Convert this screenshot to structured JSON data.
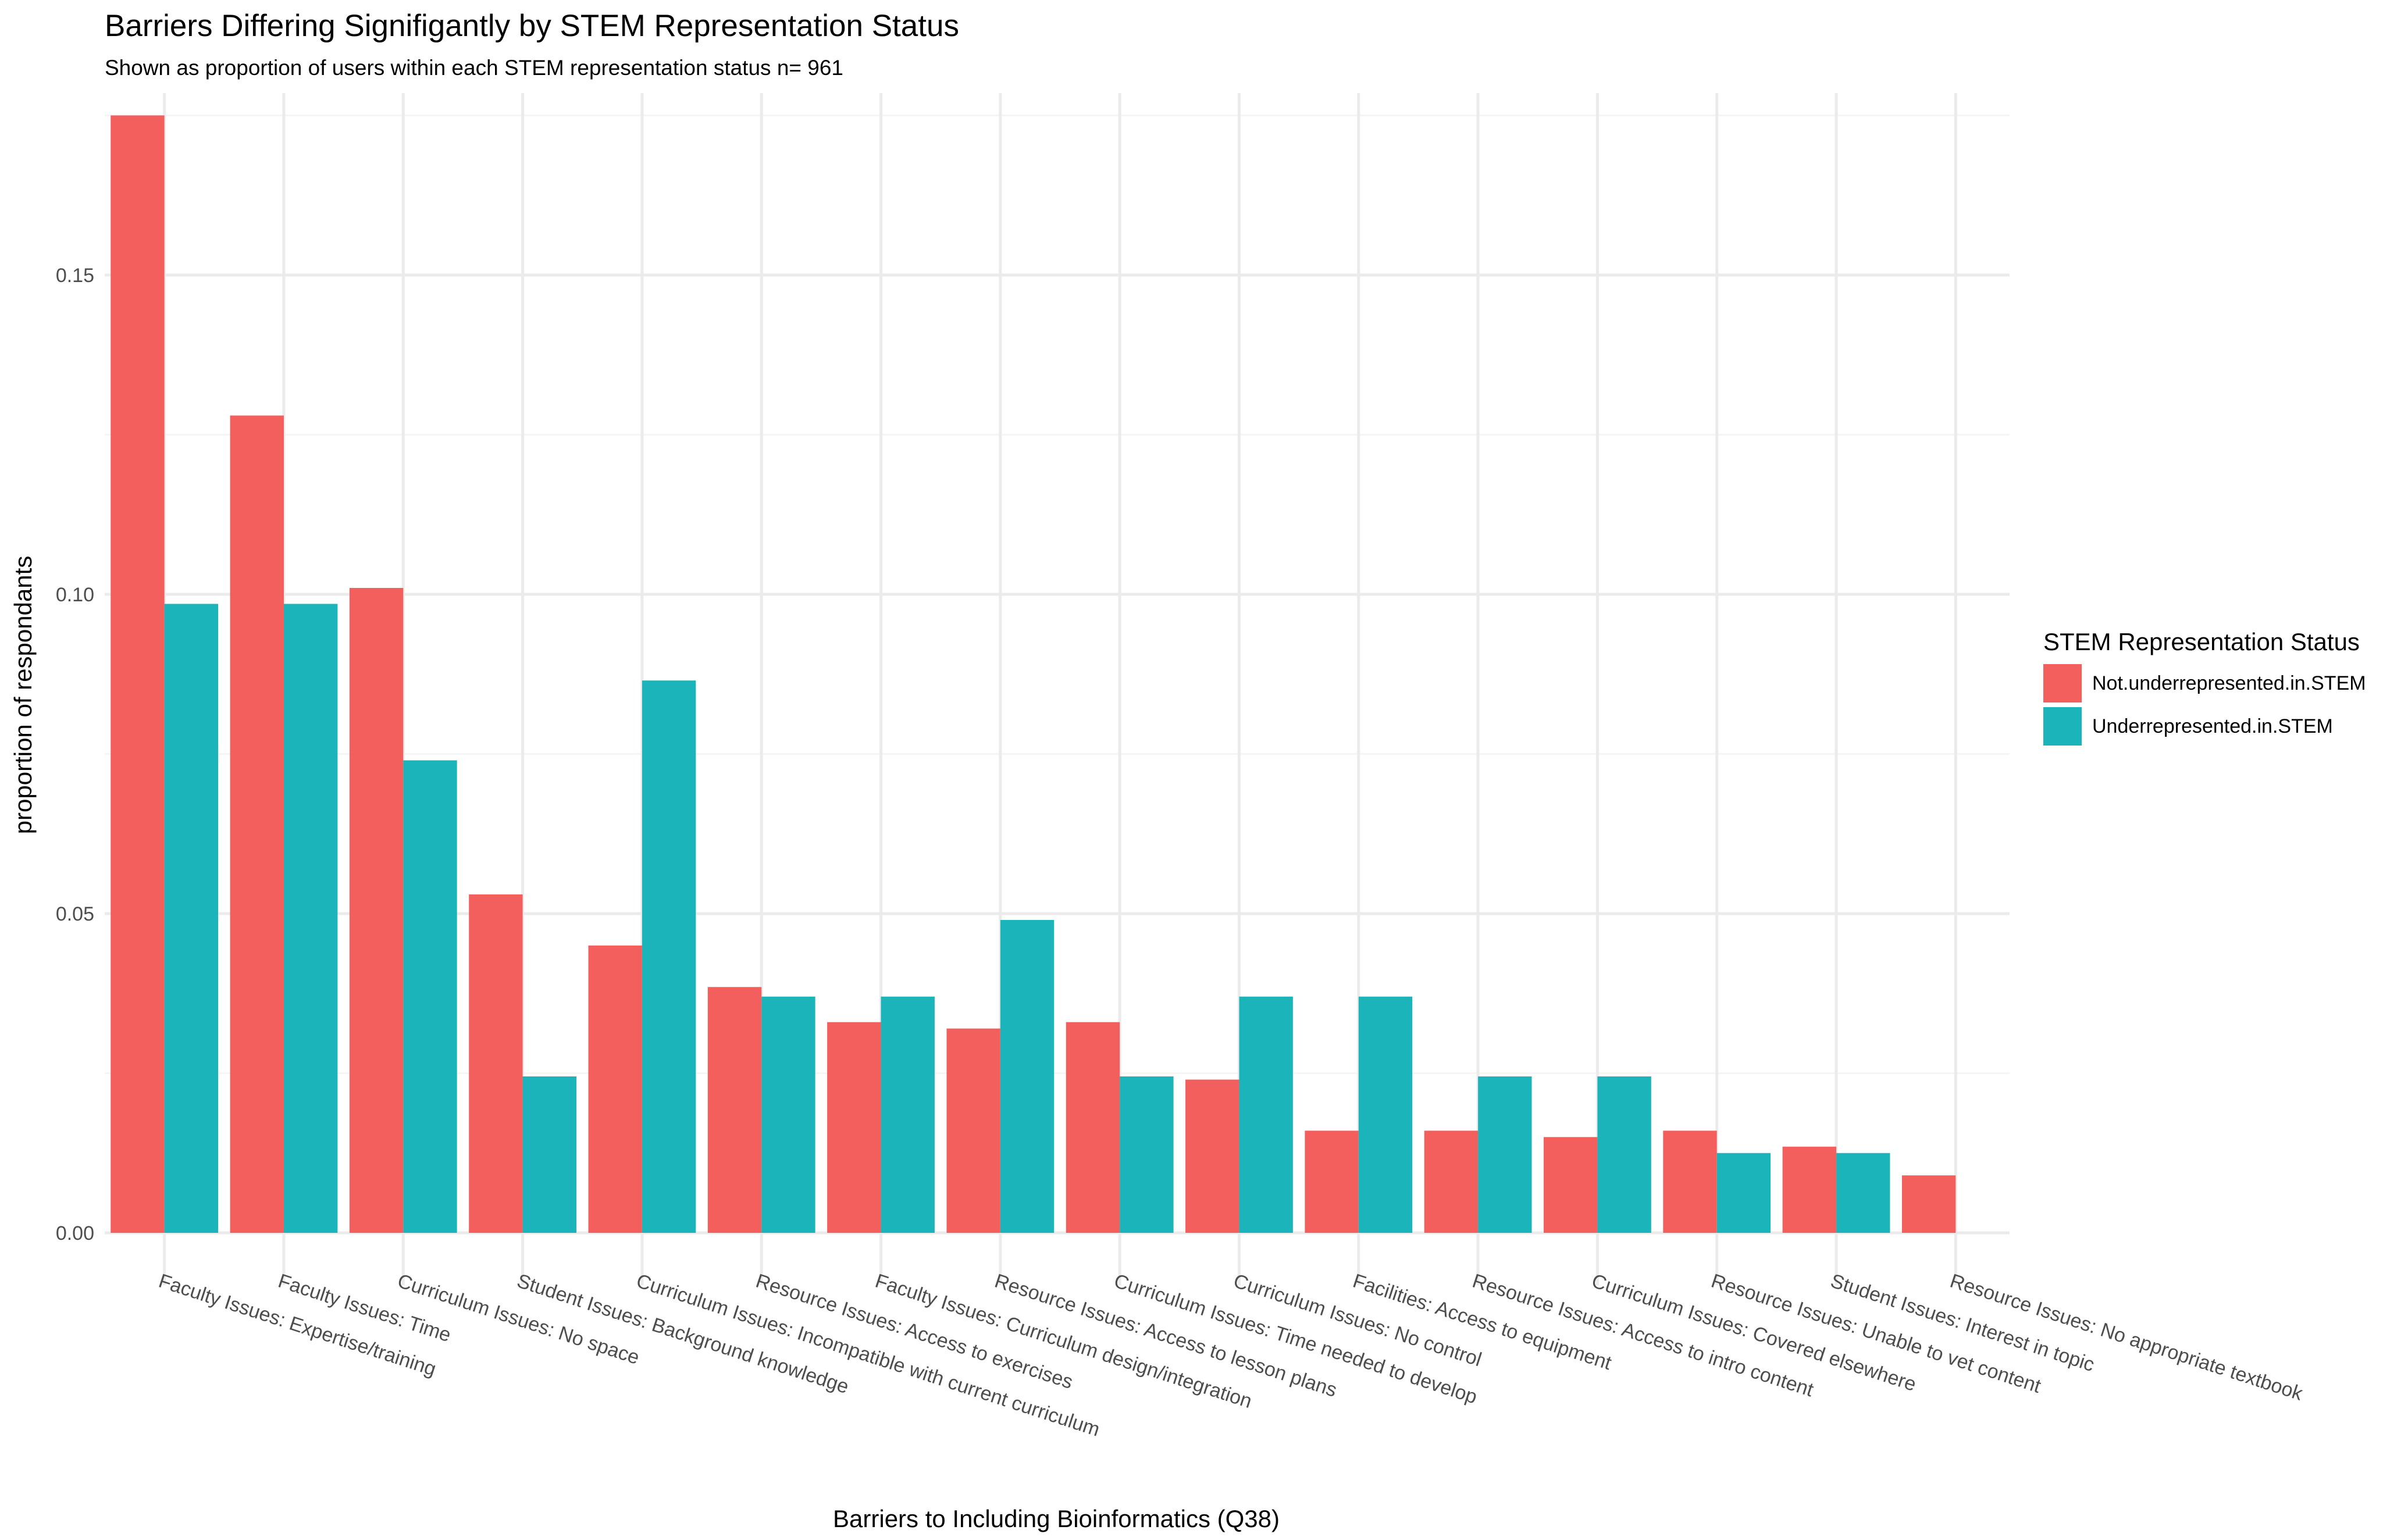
{
  "title": "Barriers Differing Signifigantly by STEM Representation Status",
  "subtitle": "Shown as proportion of users within each STEM representation status n= 961",
  "colors": {
    "not_underrepresented": "#F25F5C",
    "underrepresented": "#1AB4BA",
    "grid_major": "#EBEBEB",
    "grid_minor": "#F5F5F5"
  },
  "legend": {
    "title": "STEM Representation Status",
    "placement": "right"
  },
  "chart_data": {
    "type": "bar",
    "grid": true,
    "xlabel": "Barriers to Including Bioinformatics (Q38)",
    "ylabel": "proportion of respondants",
    "ylim": [
      0,
      0.1785
    ],
    "yticks": [
      0.0,
      0.05,
      0.1,
      0.15
    ],
    "ytick_labels": [
      "0.00",
      "0.05",
      "0.10",
      "0.15"
    ],
    "categories": [
      "Faculty Issues: Expertise/training",
      "Faculty Issues: Time",
      "Curriculum Issues: No space",
      "Student Issues: Background knowledge",
      "Curriculum Issues: Incompatible with current curriculum",
      "Resource Issues: Access to exercises",
      "Faculty Issues: Curriculum design/integration",
      "Resource Issues: Access to lesson plans",
      "Curriculum Issues: Time needed to develop",
      "Curriculum Issues: No control",
      "Facilities: Access to equipment",
      "Resource Issues: Access to intro content",
      "Curriculum Issues: Covered elsewhere",
      "Resource Issues: Unable to vet content",
      "Student Issues: Interest in topic",
      "Resource Issues: No appropriate textbook"
    ],
    "series": [
      {
        "name": "Not.underrepresented.in.STEM",
        "values": [
          0.175,
          0.128,
          0.101,
          0.053,
          0.045,
          0.0385,
          0.033,
          0.032,
          0.033,
          0.024,
          0.016,
          0.016,
          0.015,
          0.016,
          0.0135,
          0.009
        ]
      },
      {
        "name": "Underrepresented.in.STEM",
        "values": [
          0.0985,
          0.0985,
          0.074,
          0.0245,
          0.0865,
          0.037,
          0.037,
          0.049,
          0.0245,
          0.037,
          0.037,
          0.0245,
          0.0245,
          0.0125,
          0.0125,
          null
        ]
      }
    ]
  }
}
